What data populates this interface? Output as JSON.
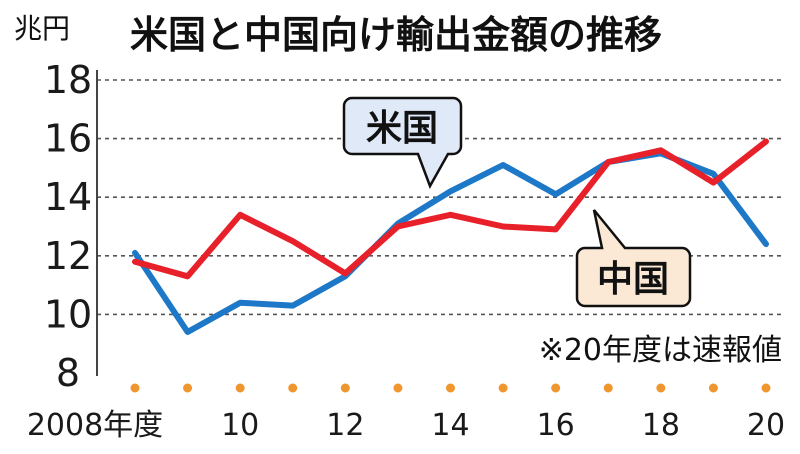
{
  "chart_data": {
    "type": "line",
    "title": "米国と中国向け輸出金額の推移",
    "ylabel": "兆円",
    "note": "※20年度は速報値",
    "ylim": [
      8,
      18
    ],
    "yticks": [
      "8",
      "10",
      "12",
      "14",
      "16",
      "18"
    ],
    "x": [
      2008,
      2009,
      2010,
      2011,
      2012,
      2013,
      2014,
      2015,
      2016,
      2017,
      2018,
      2019,
      2020
    ],
    "xtick_labels": [
      "2008年度",
      "10",
      "12",
      "14",
      "16",
      "18",
      "20"
    ],
    "xtick_years": [
      2008,
      2010,
      2012,
      2014,
      2016,
      2018,
      2020
    ],
    "grid": true,
    "series": [
      {
        "name": "米国",
        "color": "#1e78c8",
        "label_fill": "#dfe9f7",
        "values": [
          12.1,
          9.4,
          10.4,
          10.3,
          11.3,
          13.1,
          14.2,
          15.1,
          14.1,
          15.2,
          15.5,
          14.8,
          12.4
        ]
      },
      {
        "name": "中国",
        "color": "#e8202a",
        "label_fill": "#fbe9d6",
        "values": [
          11.8,
          11.3,
          13.4,
          12.5,
          11.4,
          13.0,
          13.4,
          13.0,
          12.9,
          15.2,
          15.6,
          14.5,
          15.9
        ]
      }
    ],
    "dot_color": "#f0962e"
  }
}
